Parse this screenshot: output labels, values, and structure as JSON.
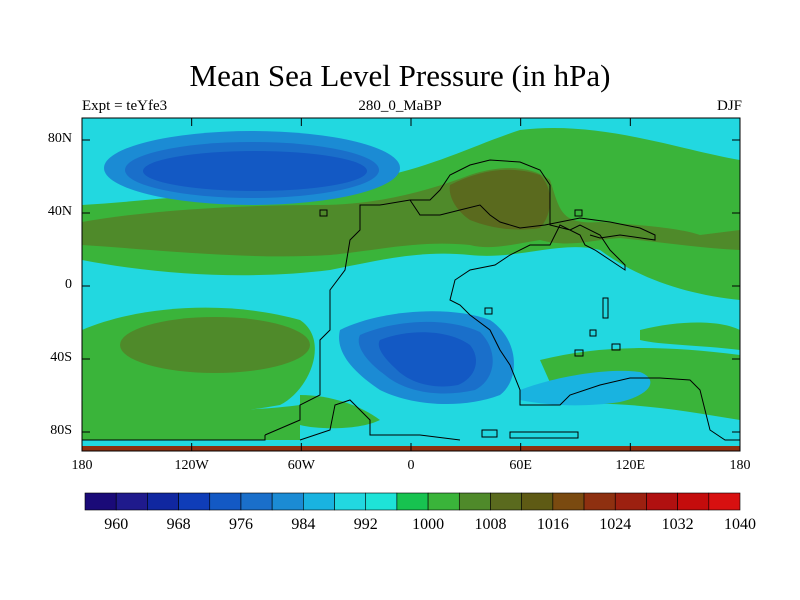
{
  "title": "Mean Sea Level Pressure (in hPa)",
  "subtitle_left": "Expt = teYfe3",
  "subtitle_center": "280_0_MaBP",
  "subtitle_right": "DJF",
  "lat_labels": [
    "80N",
    "40N",
    "0",
    "40S",
    "80S"
  ],
  "lon_labels": [
    "180",
    "120W",
    "60W",
    "0",
    "60E",
    "120E",
    "180"
  ],
  "colorbar": {
    "colors": [
      "#1a0a78",
      "#1f1a8c",
      "#1027a0",
      "#0f3db8",
      "#1359c4",
      "#1a6fca",
      "#1b8bd4",
      "#19b3e0",
      "#22d8e0",
      "#1ee3d8",
      "#17c350",
      "#3ab43a",
      "#4f8a2a",
      "#5a6a1e",
      "#5e5a14",
      "#7a4a10",
      "#8e3010",
      "#9c2010",
      "#b01010",
      "#c40c0c",
      "#d81010"
    ],
    "labels": [
      "960",
      "968",
      "976",
      "984",
      "992",
      "1000",
      "1008",
      "1016",
      "1024",
      "1032",
      "1040"
    ]
  }
}
